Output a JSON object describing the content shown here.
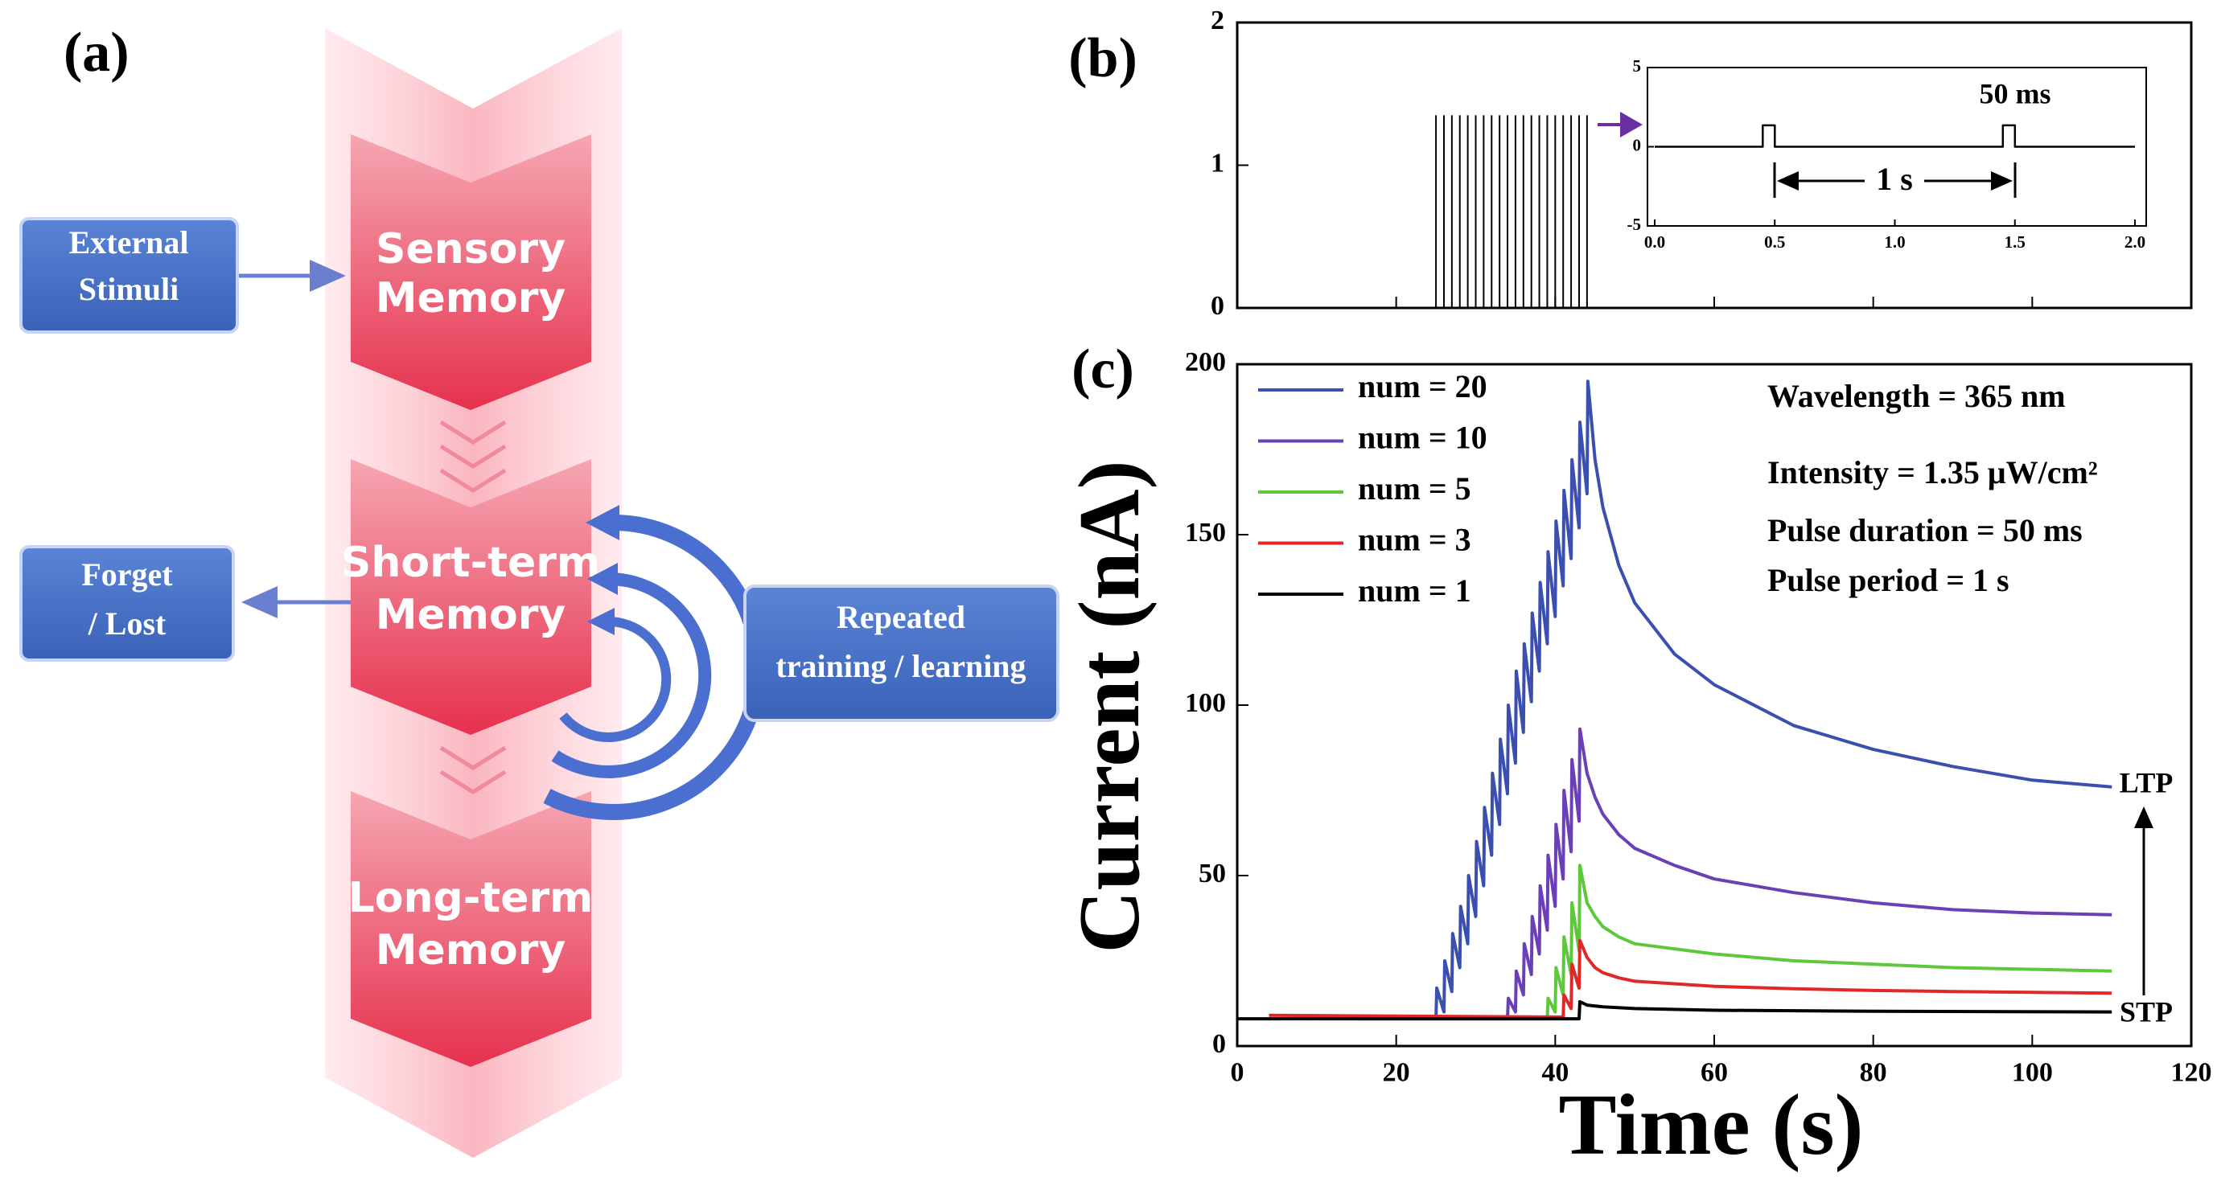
{
  "diagram": {
    "label": "(a)",
    "external": [
      "External",
      "Stimuli"
    ],
    "sensory": [
      "Sensory",
      "Memory"
    ],
    "short_term": [
      "Short-term",
      "Memory"
    ],
    "long_term": [
      "Long-term",
      "Memory"
    ],
    "forget": [
      "Forget",
      "/ Lost"
    ],
    "repeated": [
      "Repeated",
      "training / learning"
    ]
  },
  "chart_data": [
    {
      "type": "pulse",
      "panel_label": "(b)",
      "color": "#000000",
      "x": [
        25,
        26,
        27,
        28,
        29,
        30,
        31,
        32,
        33,
        34,
        35,
        36,
        37,
        38,
        39,
        40,
        41,
        42,
        43,
        44
      ],
      "values": [
        1.35,
        1.35,
        1.35,
        1.35,
        1.35,
        1.35,
        1.35,
        1.35,
        1.35,
        1.35,
        1.35,
        1.35,
        1.35,
        1.35,
        1.35,
        1.35,
        1.35,
        1.35,
        1.35,
        1.35
      ],
      "xlim": [
        0,
        120
      ],
      "ylim": [
        0,
        2
      ],
      "yticks": [
        0,
        1,
        2
      ]
    },
    {
      "type": "line",
      "color": "#000000",
      "x": [
        0,
        0.45,
        0.45,
        0.5,
        0.5,
        1.45,
        1.45,
        1.5,
        1.5,
        2.0
      ],
      "values": [
        0,
        0,
        1.35,
        1.35,
        0,
        0,
        1.35,
        1.35,
        0,
        0
      ],
      "xlim": [
        0,
        2
      ],
      "ylim": [
        -5,
        5
      ],
      "xticks": [
        {
          "value": 0,
          "label": "0.0"
        },
        0.5,
        {
          "value": 1,
          "label": "1.0"
        },
        1.5,
        {
          "value": 2,
          "label": "2.0"
        }
      ],
      "yticks": [
        -5,
        0,
        5
      ],
      "annotations": [
        "50 ms",
        "1 s"
      ]
    },
    {
      "type": "line",
      "panel_label": "(c)",
      "xlabel": "Time (s)",
      "ylabel": "Current (nA)",
      "xlim": [
        0,
        120
      ],
      "ylim": [
        0,
        200
      ],
      "xticks": [
        0,
        20,
        40,
        60,
        80,
        100,
        120
      ],
      "yticks": [
        0,
        50,
        100,
        150,
        200
      ],
      "annotations": [
        "Wavelength = 365 nm",
        "Intensity = 1.35 μW/cm²",
        "Pulse duration = 50 ms",
        "Pulse period = 1 s"
      ],
      "ltp_label": "LTP",
      "stp_label": "STP",
      "series": [
        {
          "name": "num = 20",
          "color": "#3a4fb0",
          "x": [
            16,
            25,
            25.1,
            26,
            26.1,
            27,
            27.1,
            28,
            28.1,
            29,
            29.1,
            30,
            30.1,
            31,
            31.1,
            32,
            32.1,
            33,
            33.1,
            34,
            34.1,
            35,
            35.1,
            36,
            36.1,
            37,
            37.1,
            38,
            38.1,
            39,
            39.1,
            40,
            40.1,
            41,
            41.1,
            42,
            42.1,
            43,
            43.1,
            44,
            44.1,
            45,
            46,
            48,
            50,
            55,
            60,
            70,
            80,
            90,
            100,
            110
          ],
          "values": [
            8.5,
            8.5,
            17,
            10,
            25,
            16,
            33,
            23,
            41,
            30,
            50,
            38,
            60,
            47,
            70,
            56,
            80,
            65,
            90,
            74,
            100,
            83,
            110,
            92,
            118,
            101,
            127,
            110,
            136,
            118,
            145,
            126,
            154,
            135,
            163,
            143,
            172,
            152,
            183,
            162,
            195,
            172,
            158,
            141,
            130,
            115,
            106,
            94,
            87,
            82,
            78,
            76
          ]
        },
        {
          "name": "num = 10",
          "color": "#6a3fb8",
          "x": [
            15,
            34,
            34.1,
            35,
            35.1,
            36,
            36.1,
            37,
            37.1,
            38,
            38.1,
            39,
            39.1,
            40,
            40.1,
            41,
            41.1,
            42,
            42.1,
            43,
            43.1,
            44,
            45,
            46,
            48,
            50,
            55,
            60,
            70,
            80,
            90,
            100,
            110
          ],
          "values": [
            8,
            8,
            14,
            10,
            22,
            15,
            30,
            21,
            38,
            27,
            47,
            34,
            56,
            41,
            65,
            49,
            75,
            57,
            84,
            66,
            93,
            80,
            73,
            68,
            62,
            58,
            53,
            49,
            45,
            42,
            40,
            39,
            38.5
          ]
        },
        {
          "name": "num = 5",
          "color": "#5cc83a",
          "x": [
            20,
            39,
            39.1,
            40,
            40.1,
            41,
            41.1,
            42,
            42.1,
            43,
            43.1,
            44,
            45,
            46,
            48,
            50,
            60,
            70,
            80,
            90,
            100,
            110
          ],
          "values": [
            8,
            8,
            14,
            10,
            23,
            15,
            32,
            21,
            42,
            28,
            53,
            42,
            38,
            35,
            32,
            30,
            27,
            25,
            24,
            23,
            22.5,
            22
          ]
        },
        {
          "name": "num = 3",
          "color": "#e02828",
          "x": [
            4,
            41,
            41.1,
            42,
            42.1,
            43,
            43.1,
            44,
            45,
            46,
            48,
            50,
            60,
            70,
            80,
            90,
            110
          ],
          "values": [
            9,
            8.5,
            15,
            11,
            24,
            17,
            31,
            26,
            23,
            21.5,
            20,
            19,
            17.5,
            16.8,
            16.3,
            16,
            15.5
          ]
        },
        {
          "name": "num = 1",
          "color": "#000000",
          "x": [
            0,
            43,
            43.1,
            44,
            46,
            50,
            60,
            80,
            110
          ],
          "values": [
            8,
            8,
            13,
            12,
            11.5,
            11,
            10.5,
            10.2,
            10
          ]
        }
      ]
    }
  ]
}
